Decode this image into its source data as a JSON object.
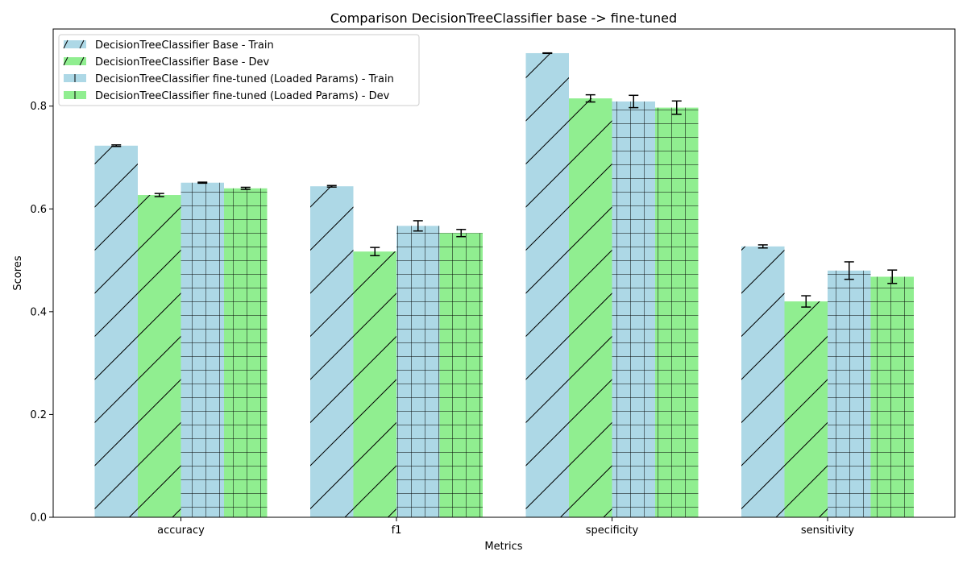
{
  "chart_data": {
    "type": "bar",
    "title": "Comparison DecisionTreeClassifier base -> fine-tuned",
    "xlabel": "Metrics",
    "ylabel": "Scores",
    "categories": [
      "accuracy",
      "f1",
      "specificity",
      "sensitivity"
    ],
    "ylim": [
      0,
      0.95
    ],
    "yticks": [
      0.0,
      0.2,
      0.4,
      0.6,
      0.8
    ],
    "ytick_labels": [
      "0.0",
      "0.2",
      "0.4",
      "0.6",
      "0.8"
    ],
    "grid": false,
    "legend_position": "top-left",
    "series": [
      {
        "name": "DecisionTreeClassifier Base - Train",
        "color": "#add8e6",
        "hatch": "diagonal",
        "values": [
          0.723,
          0.644,
          0.903,
          0.527
        ],
        "errors": [
          0.0015,
          0.0015,
          0.0005,
          0.003
        ]
      },
      {
        "name": "DecisionTreeClassifier Base - Dev",
        "color": "#90ee90",
        "hatch": "diagonal",
        "values": [
          0.627,
          0.517,
          0.815,
          0.42
        ],
        "errors": [
          0.003,
          0.008,
          0.007,
          0.011
        ]
      },
      {
        "name": "DecisionTreeClassifier fine-tuned (Loaded Params) - Train",
        "color": "#add8e6",
        "hatch": "grid",
        "values": [
          0.651,
          0.567,
          0.809,
          0.48
        ],
        "errors": [
          0.001,
          0.01,
          0.012,
          0.017
        ]
      },
      {
        "name": "DecisionTreeClassifier fine-tuned (Loaded Params) - Dev",
        "color": "#90ee90",
        "hatch": "grid",
        "values": [
          0.64,
          0.553,
          0.797,
          0.468
        ],
        "errors": [
          0.002,
          0.007,
          0.013,
          0.013
        ]
      }
    ]
  }
}
